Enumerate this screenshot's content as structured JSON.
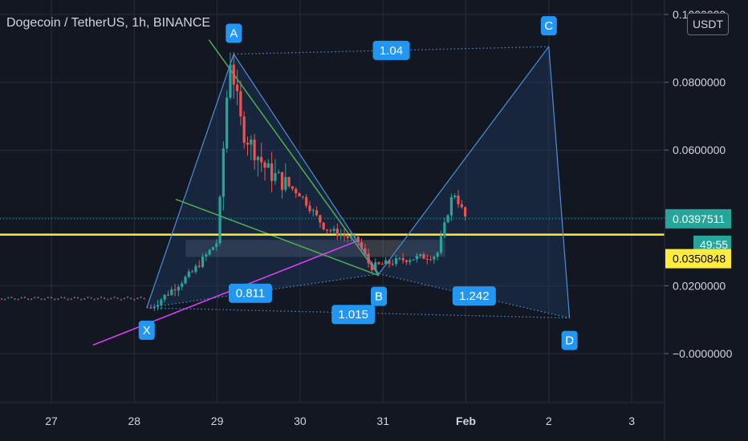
{
  "header": {
    "symbol_title": "Dogecoin / TetherUS, 1h, BINANCE",
    "currency_button": "USDT"
  },
  "price_tags": {
    "last_price": "0.0397511",
    "countdown": "49:55",
    "line_price": "0.0350848"
  },
  "colors": {
    "background": "#131722",
    "grid": "#2a2e39",
    "up_candle": "#26a69a",
    "down_candle": "#ef5350",
    "pattern_fill": "#1e3a5f",
    "pattern_line": "#4d8fd6",
    "label_bg": "#2196f3",
    "trendline_green": "#4caf50",
    "trendline_magenta": "#e040fb",
    "support_line": "#ffeb3b",
    "last_price_tag": "#26a69a"
  },
  "chart_data": {
    "type": "candlestick",
    "title": "Dogecoin / TetherUS, 1h, BINANCE",
    "x_axis": {
      "tick_labels": [
        "27",
        "28",
        "29",
        "30",
        "31",
        "Feb",
        "2",
        "3"
      ],
      "tick_days": [
        27,
        28,
        29,
        30,
        31,
        32,
        33,
        34
      ],
      "range_days": [
        26.4,
        34.3
      ]
    },
    "y_axis": {
      "tick_labels": [
        "0.1000000",
        "0.0800000",
        "0.0600000",
        "0.0400000",
        "0.0200000",
        "−0.0000000"
      ],
      "tick_values": [
        0.1,
        0.08,
        0.06,
        0.04,
        0.02,
        0.0
      ],
      "range": [
        -0.0095,
        0.1025
      ]
    },
    "grid": true,
    "ohlc_samples": [
      {
        "day": 28.2,
        "price": 0.0135
      },
      {
        "day": 28.7,
        "price": 0.024
      },
      {
        "day": 29.0,
        "price": 0.033
      },
      {
        "day": 29.15,
        "price": 0.088
      },
      {
        "day": 29.3,
        "price": 0.066
      },
      {
        "day": 29.6,
        "price": 0.054
      },
      {
        "day": 30.0,
        "price": 0.047
      },
      {
        "day": 30.3,
        "price": 0.037
      },
      {
        "day": 30.7,
        "price": 0.033
      },
      {
        "day": 30.85,
        "price": 0.0255
      },
      {
        "day": 31.3,
        "price": 0.028
      },
      {
        "day": 31.65,
        "price": 0.029
      },
      {
        "day": 31.85,
        "price": 0.048
      },
      {
        "day": 32.0,
        "price": 0.0398
      }
    ],
    "harmonic_pattern": {
      "points": [
        {
          "label": "X",
          "day": 28.15,
          "price": 0.0135
        },
        {
          "label": "A",
          "day": 29.2,
          "price": 0.0883
        },
        {
          "label": "B",
          "day": 30.95,
          "price": 0.0235
        },
        {
          "label": "C",
          "day": 33.0,
          "price": 0.0905
        },
        {
          "label": "D",
          "day": 33.25,
          "price": 0.0105
        }
      ],
      "ratios": [
        {
          "label": "1.04",
          "from": "A",
          "to": "C"
        },
        {
          "label": "0.811",
          "from": "X",
          "to": "B"
        },
        {
          "label": "1.015",
          "from": "X",
          "to": "D"
        },
        {
          "label": "1.242",
          "from": "B",
          "to": "D"
        }
      ]
    },
    "horizontal_lines": [
      {
        "price": 0.0350848,
        "color": "#ffeb3b",
        "style": "solid"
      },
      {
        "price": 0.0397511,
        "color": "#26a69a",
        "style": "dotted"
      }
    ],
    "last_price": 0.0397511,
    "line_price": 0.0350848
  }
}
